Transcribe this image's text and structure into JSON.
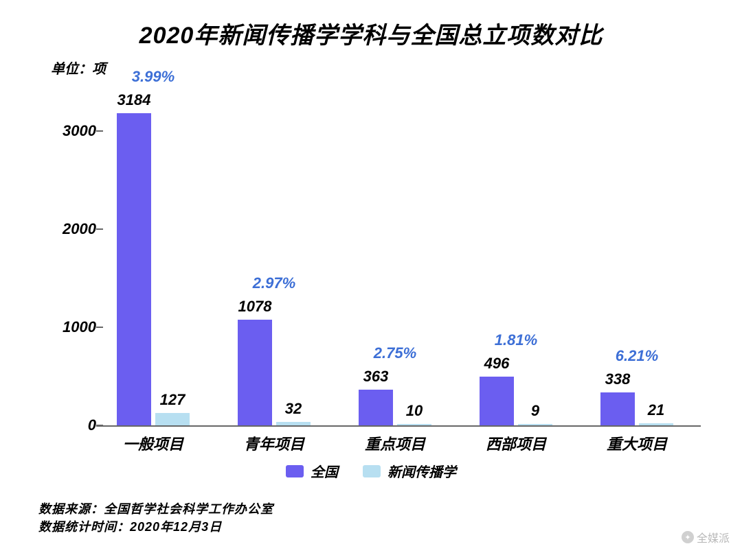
{
  "title": "2020年新闻传播学学科与全国总立项数对比",
  "unit_label": "单位：项",
  "chart": {
    "type": "bar",
    "y": {
      "min": 0,
      "max": 3500,
      "ticks": [
        0,
        1000,
        2000,
        3000
      ]
    },
    "series": [
      {
        "key": "a",
        "name": "全国",
        "color": "#6b5ef0"
      },
      {
        "key": "b",
        "name": "新闻传播学",
        "color": "#b7dff1"
      }
    ],
    "percent_color": "#3d6fd6",
    "value_color": "#000000",
    "categories": [
      {
        "label": "一般项目",
        "a": 3184,
        "b": 127,
        "pct": "3.99%"
      },
      {
        "label": "青年项目",
        "a": 1078,
        "b": 32,
        "pct": "2.97%"
      },
      {
        "label": "重点项目",
        "a": 363,
        "b": 10,
        "pct": "2.75%"
      },
      {
        "label": "西部项目",
        "a": 496,
        "b": 9,
        "pct": "1.81%"
      },
      {
        "label": "重大项目",
        "a": 338,
        "b": 21,
        "pct": "6.21%"
      }
    ],
    "axis_color": "#666666",
    "background_color": "#ffffff",
    "tick_fontsize": 22,
    "label_fontsize": 22,
    "title_fontsize": 34
  },
  "footer": {
    "source_label": "数据来源：",
    "source_value": "全国哲学社会科学工作办公室",
    "date_label": "数据统计时间：",
    "date_value": "2020年12月3日"
  },
  "watermark": "全媒派"
}
